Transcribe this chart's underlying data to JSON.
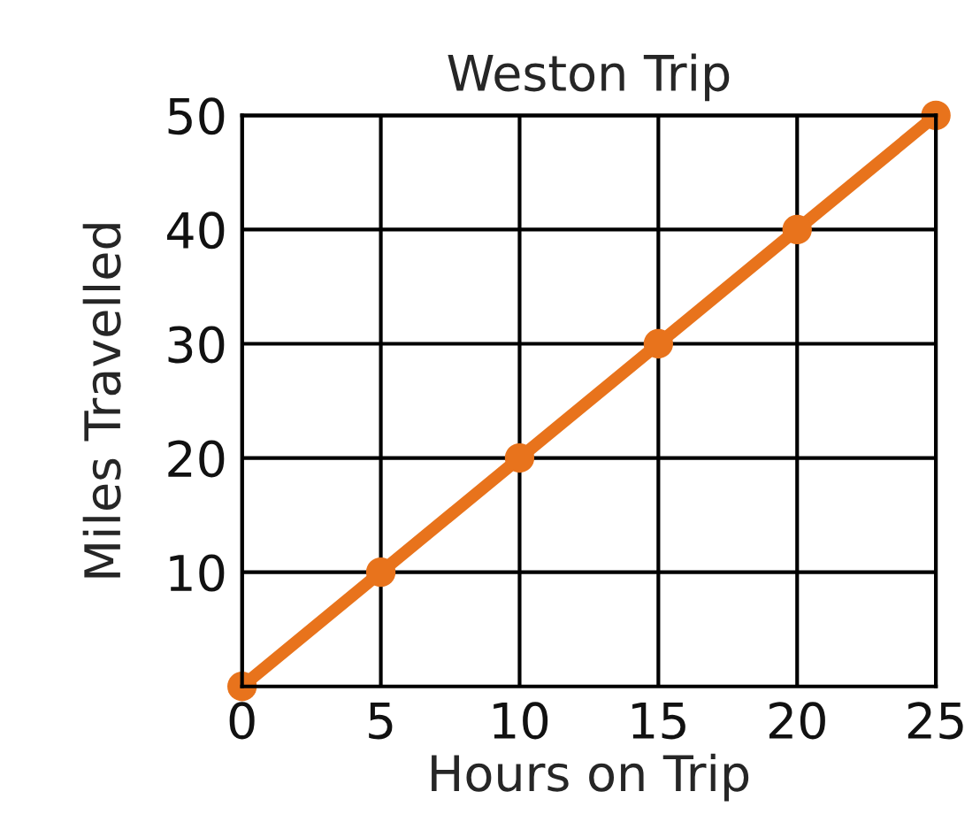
{
  "chart_data": {
    "type": "line",
    "title": "Weston Trip",
    "xlabel": "Hours on Trip",
    "ylabel": "Miles Travelled",
    "x": [
      0,
      5,
      10,
      15,
      20,
      25
    ],
    "series": [
      {
        "color": "#e8731c",
        "values": [
          0,
          10,
          20,
          30,
          40,
          50
        ]
      }
    ],
    "xlim": [
      0,
      25
    ],
    "ylim": [
      0,
      50
    ],
    "xticks": [
      0,
      5,
      10,
      15,
      20,
      25
    ],
    "yticks": [
      10,
      20,
      30,
      40,
      50
    ],
    "grid": true,
    "marker": "circle",
    "line_style": "solid"
  }
}
